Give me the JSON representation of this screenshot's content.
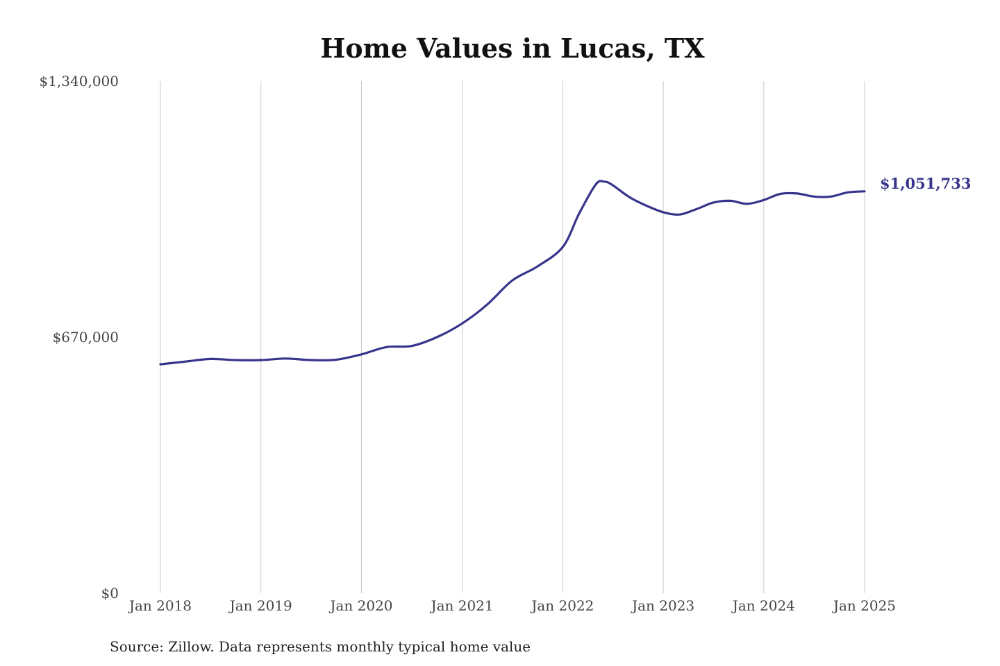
{
  "chart_data": {
    "type": "line",
    "title": "Home Values in Lucas, TX",
    "source": "Source: Zillow. Data represents monthly typical home value",
    "ylim": [
      0,
      1340000
    ],
    "yticks": [
      {
        "value": 0,
        "label": "$0"
      },
      {
        "value": 670000,
        "label": "$670,000"
      },
      {
        "value": 1340000,
        "label": "$1,340,000"
      }
    ],
    "xticks": [
      {
        "date": "2018-01",
        "label": "Jan 2018"
      },
      {
        "date": "2019-01",
        "label": "Jan 2019"
      },
      {
        "date": "2020-01",
        "label": "Jan 2020"
      },
      {
        "date": "2021-01",
        "label": "Jan 2021"
      },
      {
        "date": "2022-01",
        "label": "Jan 2022"
      },
      {
        "date": "2023-01",
        "label": "Jan 2023"
      },
      {
        "date": "2024-01",
        "label": "Jan 2024"
      },
      {
        "date": "2025-01",
        "label": "Jan 2025"
      }
    ],
    "grid": "vertical",
    "line_color": "#37348b",
    "end_label": "$1,051,733",
    "series": [
      {
        "x": [
          "2018-01",
          "2018-04",
          "2018-07",
          "2018-10",
          "2019-01",
          "2019-04",
          "2019-07",
          "2019-10",
          "2020-01",
          "2020-04",
          "2020-07",
          "2020-10",
          "2021-01",
          "2021-04",
          "2021-07",
          "2021-10",
          "2022-01",
          "2022-03",
          "2022-05",
          "2022-06",
          "2022-07",
          "2022-09",
          "2022-11",
          "2023-01",
          "2023-03",
          "2023-05",
          "2023-07",
          "2023-09",
          "2023-11",
          "2024-01",
          "2024-03",
          "2024-05",
          "2024-07",
          "2024-09",
          "2024-11",
          "2025-01"
        ],
        "values": [
          599000,
          606000,
          613000,
          610000,
          610000,
          614000,
          610000,
          611000,
          625000,
          644000,
          647000,
          670000,
          706000,
          755000,
          818000,
          855000,
          906000,
          993000,
          1070000,
          1077000,
          1068000,
          1036000,
          1014000,
          997000,
          991000,
          1005000,
          1022000,
          1027000,
          1019000,
          1029000,
          1045000,
          1046000,
          1038000,
          1038000,
          1049000,
          1051733
        ]
      }
    ]
  }
}
